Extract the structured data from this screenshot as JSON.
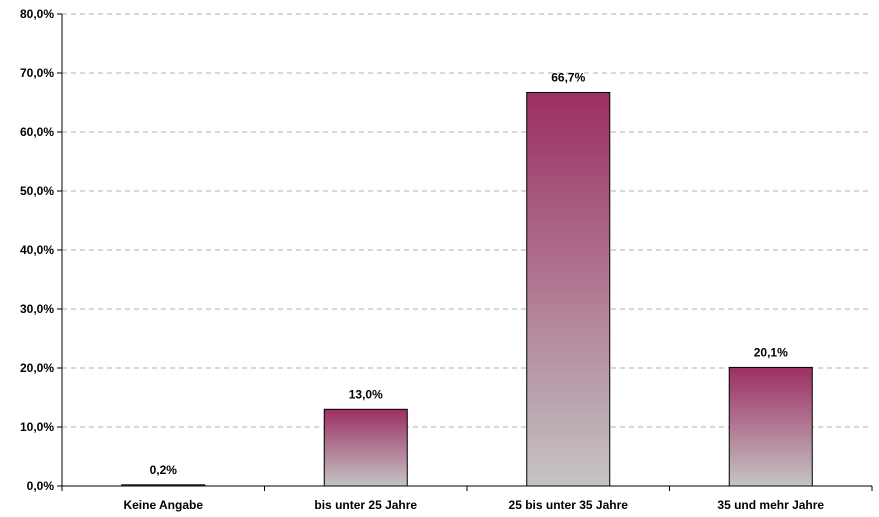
{
  "chart_data": {
    "type": "bar",
    "categories": [
      "Keine Angabe",
      "bis unter 25 Jahre",
      "25 bis unter 35 Jahre",
      "35 und mehr Jahre"
    ],
    "values": [
      0.2,
      13.0,
      66.7,
      20.1
    ],
    "value_labels": [
      "0,2%",
      "13,0%",
      "66,7%",
      "20,1%"
    ],
    "y_ticks": [
      0,
      10,
      20,
      30,
      40,
      50,
      60,
      70,
      80
    ],
    "y_tick_labels": [
      "0,0%",
      "10,0%",
      "20,0%",
      "30,0%",
      "40,0%",
      "50,0%",
      "60,0%",
      "70,0%",
      "80,0%"
    ],
    "ylim": [
      0,
      80
    ],
    "grid": true,
    "legend": "none",
    "colors": {
      "bar_top": "#9c2f62",
      "bar_bottom": "#c4c4c4",
      "grid": "#b0b0b0",
      "axis": "#000000"
    }
  }
}
